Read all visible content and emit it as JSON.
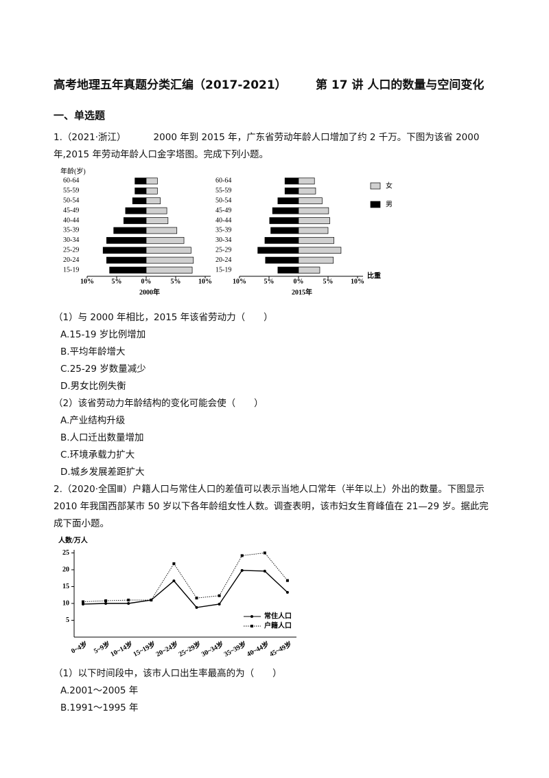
{
  "header": {
    "title_left": "高考地理五年真题分类汇编（2017-2021）",
    "title_right": "第 17 讲 人口的数量与空间变化"
  },
  "section": "一、单选题",
  "questions": [
    {
      "number": "1.",
      "source": "（2021·浙江）",
      "stem": "2000 年到 2015 年，广东省劳动年龄人口增加了约 2 千万。下图为该省 2000 年,2015 年劳动年龄人口金字塔图。完成下列小题。",
      "subs": [
        {
          "stem": "（1）与 2000 年相比，2015 年该省劳动力（　　）",
          "options": [
            "A.15-19 岁比例增加",
            "B.平均年龄增大",
            "C.25-29 岁数量减少",
            "D.男女比例失衡"
          ]
        },
        {
          "stem": "（2）该省劳动力年龄结构的变化可能会使（　　）",
          "options": [
            "A.产业结构升级",
            "B.人口迁出数量增加",
            "C.环境承载力扩大",
            "D.城乡发展差距扩大"
          ]
        }
      ]
    },
    {
      "number": "2.",
      "source": "（2020·全国Ⅲ）",
      "stem": "户籍人口与常住人口的差值可以表示当地人口常年（半年以上）外出的数量。下图显示 2010 年我国西部某市 50 岁以下各年龄组女性人数。调查表明，该市妇女生育峰值在 21—29 岁。据此完成下面小题。",
      "subs": [
        {
          "stem": "（1）以下时间段中，该市人口出生率最高的为（　　）",
          "options": [
            "A.2001～2005 年",
            "B.1991～1995 年"
          ]
        }
      ]
    }
  ],
  "chart_data": [
    {
      "type": "pyramid",
      "title": "2000年",
      "ylabel": "年龄(岁)",
      "categories": [
        "15-19",
        "20-24",
        "25-29",
        "30-34",
        "35-39",
        "40-44",
        "45-49",
        "50-54",
        "55-59",
        "60-64"
      ],
      "series": [
        {
          "color": "#000000",
          "values": [
            6.2,
            6.7,
            7.3,
            6.7,
            5.5,
            3.8,
            3.5,
            2.3,
            1.9,
            1.9
          ]
        },
        {
          "color": "#d0d0d0",
          "values": [
            7.8,
            8.0,
            7.6,
            6.4,
            5.2,
            3.7,
            3.5,
            2.4,
            1.9,
            1.9
          ]
        }
      ],
      "xlim": [
        -10,
        10
      ],
      "xticks": [
        {
          "value": -10,
          "label": "10%"
        },
        {
          "value": -5,
          "label": "5%"
        },
        {
          "value": 0,
          "label": "0%"
        },
        {
          "value": 5,
          "label": "5%"
        },
        {
          "value": 10,
          "label": "10%"
        }
      ]
    },
    {
      "type": "pyramid",
      "title": "2015年",
      "xlabel": "比重",
      "legend": "right",
      "categories": [
        "15-19",
        "20-24",
        "25-29",
        "30-34",
        "35-39",
        "40-44",
        "45-49",
        "50-54",
        "55-59",
        "60-64"
      ],
      "series": [
        {
          "name": "男",
          "color": "#000000",
          "values": [
            3.5,
            5.6,
            6.9,
            5.7,
            4.7,
            4.9,
            4.4,
            3.5,
            2.3,
            2.3
          ]
        },
        {
          "name": "女",
          "color": "#d0d0d0",
          "values": [
            3.6,
            5.9,
            7.2,
            6.0,
            5.0,
            5.3,
            5.1,
            4.0,
            2.9,
            2.7
          ]
        }
      ],
      "xlim": [
        -10,
        10
      ],
      "xticks": [
        {
          "value": -10,
          "label": "10%"
        },
        {
          "value": -5,
          "label": "5%"
        },
        {
          "value": 0,
          "label": "0%"
        },
        {
          "value": 5,
          "label": "5%"
        },
        {
          "value": 10,
          "label": "10%"
        }
      ]
    },
    {
      "type": "line",
      "ylabel": "人数/万人",
      "categories": [
        "0~4岁",
        "5~9岁",
        "10~14岁",
        "15~19岁",
        "20~24岁",
        "25~29岁",
        "30~34岁",
        "35~39岁",
        "40~44岁",
        "45~49岁"
      ],
      "series": [
        {
          "name": "常住人口",
          "color": "#000000",
          "values": [
            9.8,
            10,
            10,
            11,
            16.7,
            8.8,
            9.8,
            19.8,
            19.6,
            13.3
          ]
        },
        {
          "name": "户籍人口",
          "color": "#000000",
          "values": [
            10.5,
            10.8,
            11,
            11,
            21.8,
            11.6,
            12.3,
            24.2,
            25,
            16.8
          ]
        }
      ],
      "ylim": [
        0,
        25
      ],
      "yticks": [
        5,
        10,
        15,
        20,
        25
      ]
    }
  ]
}
